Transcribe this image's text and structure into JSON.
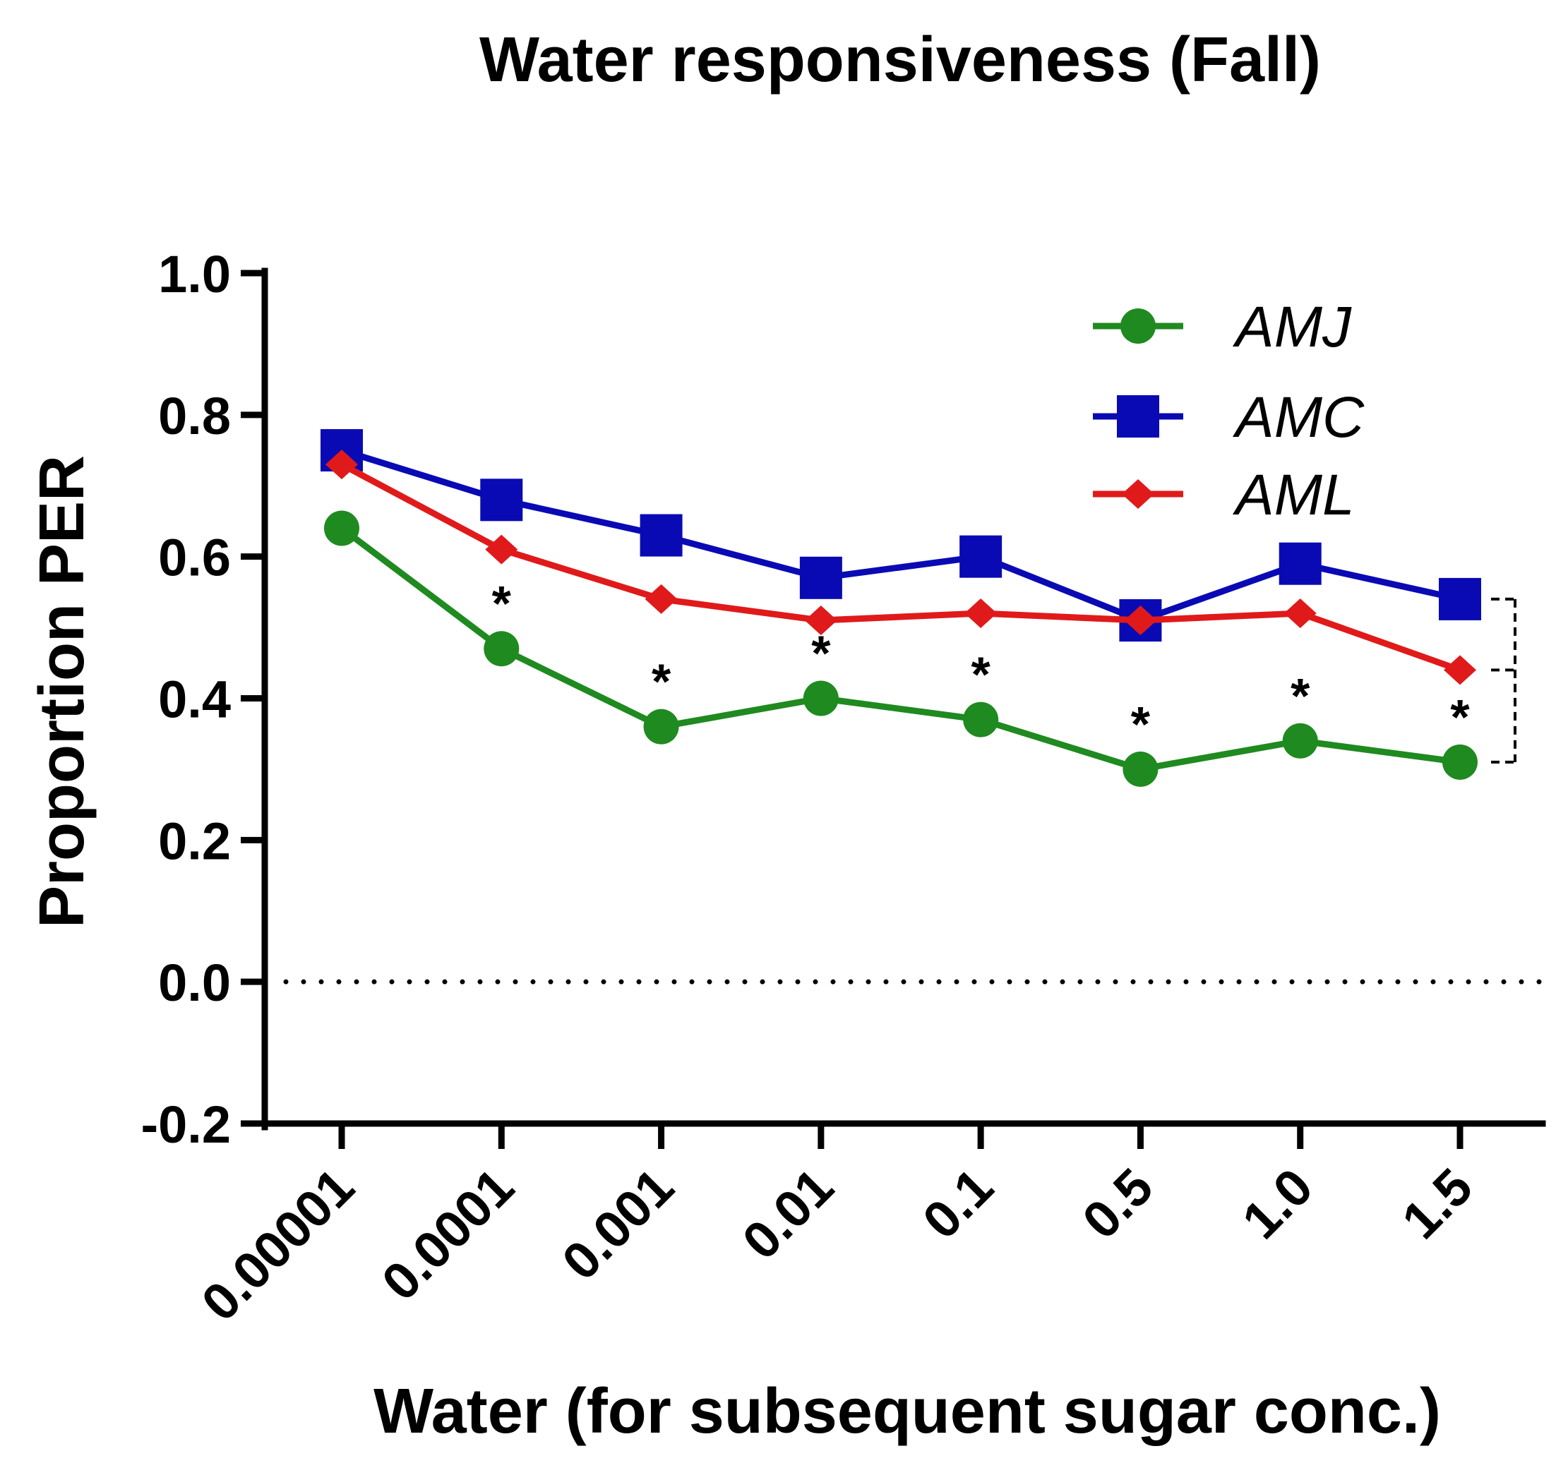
{
  "chart_data": {
    "type": "line",
    "title": "Water responsiveness (Fall)",
    "xlabel": "Water (for subsequent sugar conc.)",
    "ylabel": "Proportion PER",
    "categories": [
      "0.00001",
      "0.0001",
      "0.001",
      "0.01",
      "0.1",
      "0.5",
      "1.0",
      "1.5"
    ],
    "ylim": [
      -0.2,
      1.0
    ],
    "yticks": [
      -0.2,
      0.0,
      0.2,
      0.4,
      0.6,
      0.8,
      1.0
    ],
    "ytick_labels": [
      "-0.2",
      "0.0",
      "0.2",
      "0.4",
      "0.6",
      "0.8",
      "1.0"
    ],
    "reference_line": {
      "y": 0.0,
      "style": "dotted"
    },
    "legend": {
      "placement": "top-right"
    },
    "series": [
      {
        "name": "AMJ",
        "color": "#1f8a1f",
        "marker": "circle",
        "values": [
          0.64,
          0.47,
          0.36,
          0.4,
          0.37,
          0.3,
          0.34,
          0.31
        ]
      },
      {
        "name": "AMC",
        "color": "#0a0ab4",
        "marker": "square",
        "values": [
          0.75,
          0.68,
          0.63,
          0.57,
          0.6,
          0.51,
          0.59,
          0.54
        ]
      },
      {
        "name": "AML",
        "color": "#e01a1a",
        "marker": "diamond",
        "values": [
          0.73,
          0.61,
          0.54,
          0.51,
          0.52,
          0.51,
          0.52,
          0.44
        ]
      }
    ],
    "annotations": {
      "significance_marker": "*",
      "significance_categories": [
        "0.0001",
        "0.001",
        "0.01",
        "0.1",
        "0.5",
        "1.0",
        "1.5"
      ],
      "bracket": {
        "type": "dashed",
        "levels": [
          0.54,
          0.44,
          0.31
        ]
      }
    }
  }
}
